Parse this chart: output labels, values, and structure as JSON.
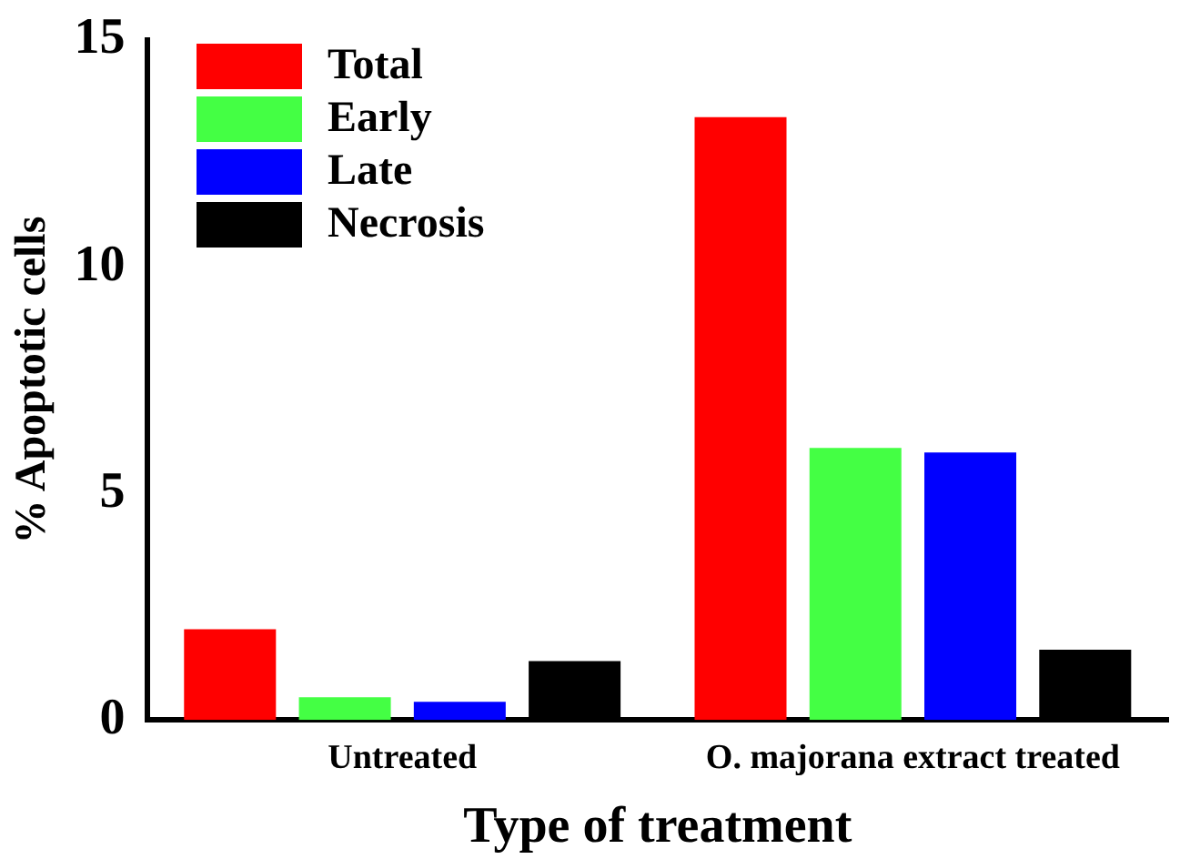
{
  "chart_data": {
    "type": "bar",
    "xlabel": "Type of treatment",
    "ylabel": "% Apoptotic cells",
    "categories": [
      "Untreated",
      "O. majorana extract treated"
    ],
    "series": [
      {
        "name": "Total",
        "color": "#ff0000",
        "values": [
          2.0,
          13.3
        ]
      },
      {
        "name": "Early",
        "color": "#44ff44",
        "values": [
          0.5,
          6.0
        ]
      },
      {
        "name": "Late",
        "color": "#0000ff",
        "values": [
          0.4,
          5.9
        ]
      },
      {
        "name": "Necrosis",
        "color": "#000000",
        "values": [
          1.3,
          1.55
        ]
      }
    ],
    "ylim": [
      0,
      15
    ],
    "yticks": [
      0,
      5,
      10,
      15
    ],
    "grid": false,
    "legend": "top left"
  }
}
